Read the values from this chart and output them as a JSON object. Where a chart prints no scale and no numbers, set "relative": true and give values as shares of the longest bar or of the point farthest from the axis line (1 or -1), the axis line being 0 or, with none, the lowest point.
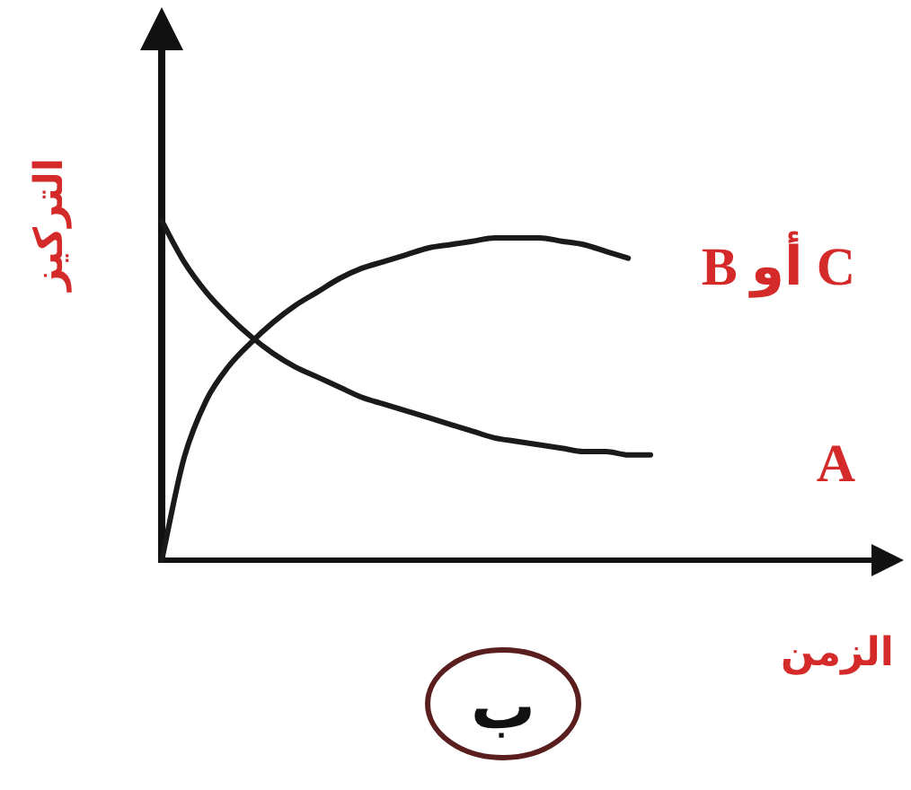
{
  "chart_data": {
    "type": "line",
    "relative": true,
    "line_style": "solid",
    "xlabel": "الزمن",
    "ylabel": "التركيز",
    "annotations": [
      "ب"
    ],
    "categories": [
      null,
      null,
      null,
      null,
      null,
      null,
      null,
      null,
      null,
      null,
      null,
      null,
      null,
      null,
      null,
      null,
      null,
      null,
      null,
      null,
      null,
      null,
      null
    ],
    "series": [
      {
        "name": "A",
        "color": "#1a1a1a",
        "values": [
          1.0,
          0.88,
          0.79,
          0.72,
          0.66,
          0.61,
          0.57,
          0.54,
          0.51,
          0.48,
          0.46,
          0.44,
          0.42,
          0.4,
          0.38,
          0.36,
          0.35,
          0.34,
          0.33,
          0.32,
          0.32,
          0.31,
          0.31
        ]
      },
      {
        "name": "C أو B",
        "color": "#1a1a1a",
        "values": [
          0.0,
          0.3,
          0.47,
          0.57,
          0.64,
          0.7,
          0.75,
          0.79,
          0.83,
          0.86,
          0.88,
          0.9,
          0.92,
          0.93,
          0.94,
          0.95,
          0.95,
          0.95,
          0.94,
          0.93,
          0.91,
          0.89,
          null
        ]
      }
    ]
  }
}
